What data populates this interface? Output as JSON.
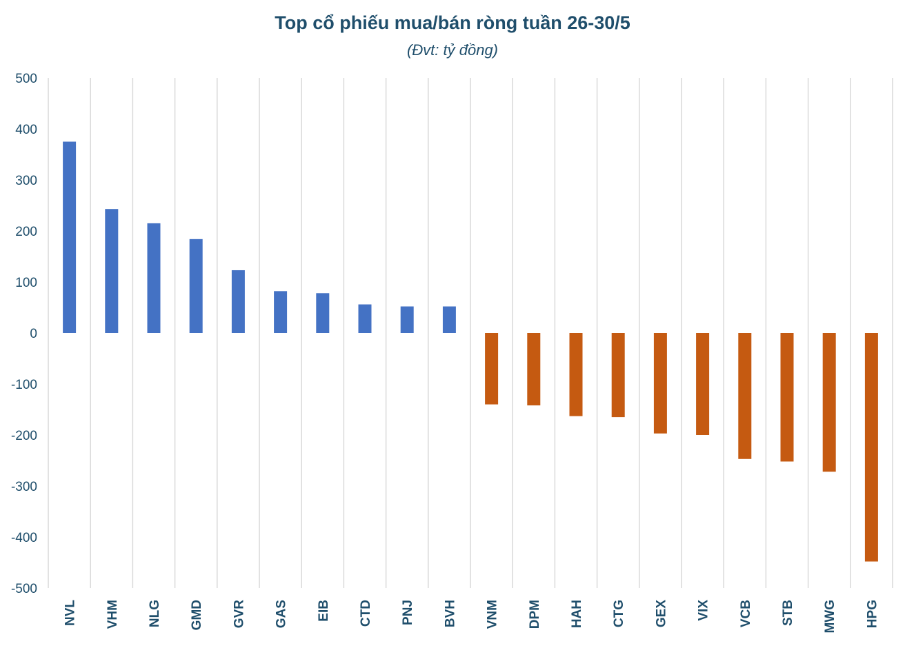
{
  "chart_data": {
    "type": "bar",
    "title": "Top cổ phiếu mua/bán ròng tuần 26-30/5",
    "subtitle": "(Đvt: tỷ đồng)",
    "categories": [
      "NVL",
      "VHM",
      "NLG",
      "GMD",
      "GVR",
      "GAS",
      "EIB",
      "CTD",
      "PNJ",
      "BVH",
      "VNM",
      "DPM",
      "HAH",
      "CTG",
      "GEX",
      "VIX",
      "VCB",
      "STB",
      "MWG",
      "HPG"
    ],
    "values": [
      375,
      243,
      215,
      184,
      123,
      82,
      78,
      56,
      52,
      52,
      -140,
      -142,
      -163,
      -165,
      -197,
      -200,
      -247,
      -252,
      -272,
      -448
    ],
    "ylim": [
      -500,
      500
    ],
    "yticks": [
      "500",
      "400",
      "300",
      "200",
      "100",
      "0",
      "-100",
      "-200",
      "-300",
      "-400",
      "-500"
    ],
    "grid": "vertical gridlines between categories",
    "colors": {
      "positive": "#4472c4",
      "negative": "#c55a11",
      "text": "#1f4e6b",
      "grid": "#d9d9d9"
    }
  }
}
